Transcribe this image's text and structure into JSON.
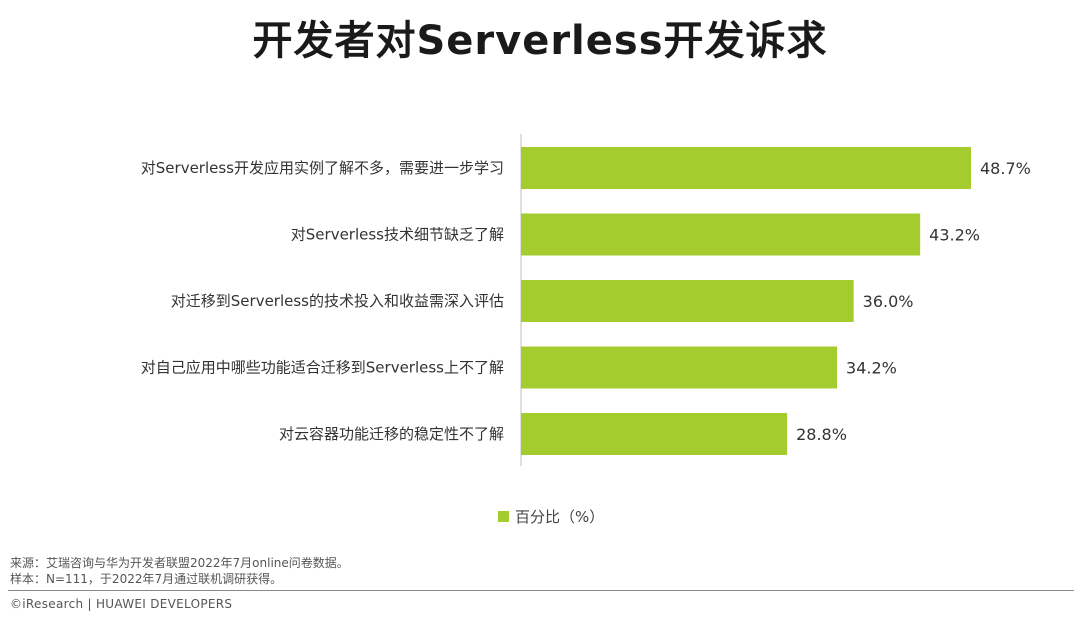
{
  "title": "开发者对Serverless开发诉求",
  "chart_data": {
    "type": "bar",
    "orientation": "horizontal",
    "categories": [
      "对Serverless开发应用实例了解不多，需要进一步学习",
      "对Serverless技术细节缺乏了解",
      "对迁移到Serverless的技术投入和收益需深入评估",
      "对自己应用中哪些功能适合迁移到Serverless上不了解",
      "对云容器功能迁移的稳定性不了解"
    ],
    "series": [
      {
        "name": "百分比（%）",
        "values": [
          48.7,
          43.2,
          36.0,
          34.2,
          28.8
        ],
        "color": "#a5cc2e"
      }
    ],
    "data_labels": [
      "48.7%",
      "43.2%",
      "36.0%",
      "34.2%",
      "28.8%"
    ],
    "xlim": [
      0,
      48.7
    ],
    "grid": false,
    "legend": "bottom-center"
  },
  "legend": {
    "label": "百分比（%）"
  },
  "source": {
    "line1": "来源：艾瑞咨询与华为开发者联盟2022年7月online问卷数据。",
    "line2": "样本：N=111，于2022年7月通过联机调研获得。"
  },
  "footer": "©iResearch | HUAWEI DEVELOPERS"
}
